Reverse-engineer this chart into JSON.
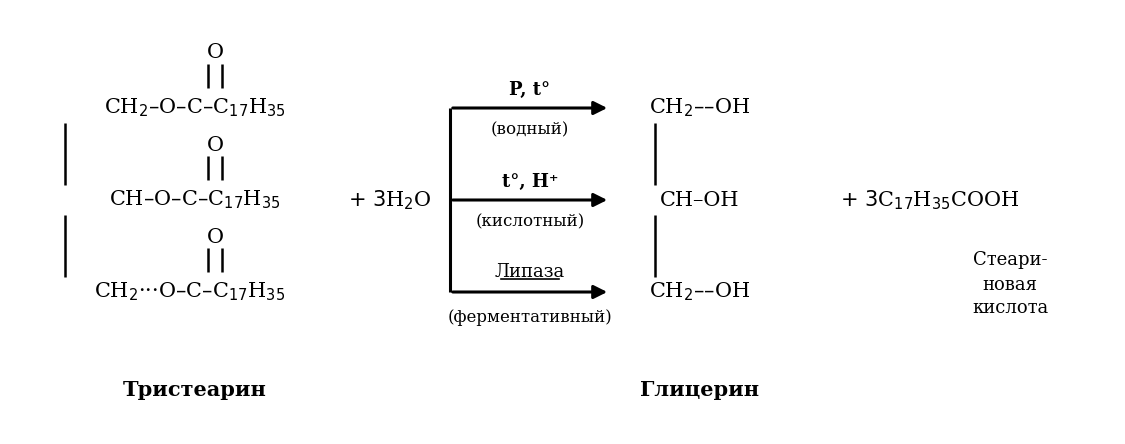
{
  "bg_color": "#ffffff",
  "fig_width": 11.25,
  "fig_height": 4.44,
  "dpi": 100,
  "tristearinLabel": "Тристеарин",
  "glycerinLabel": "Глицерин",
  "stearicLine1": "Стеари-",
  "stearicLine2": "новая",
  "stearicLine3": "кислота",
  "arrow1_top": "P, t°",
  "arrow1_bot": "(водный)",
  "arrow2_top": "t°, H⁺",
  "arrow2_bot": "(кислотный)",
  "arrow3_top": "Липаза",
  "arrow3_bot": "(ферментативный)"
}
